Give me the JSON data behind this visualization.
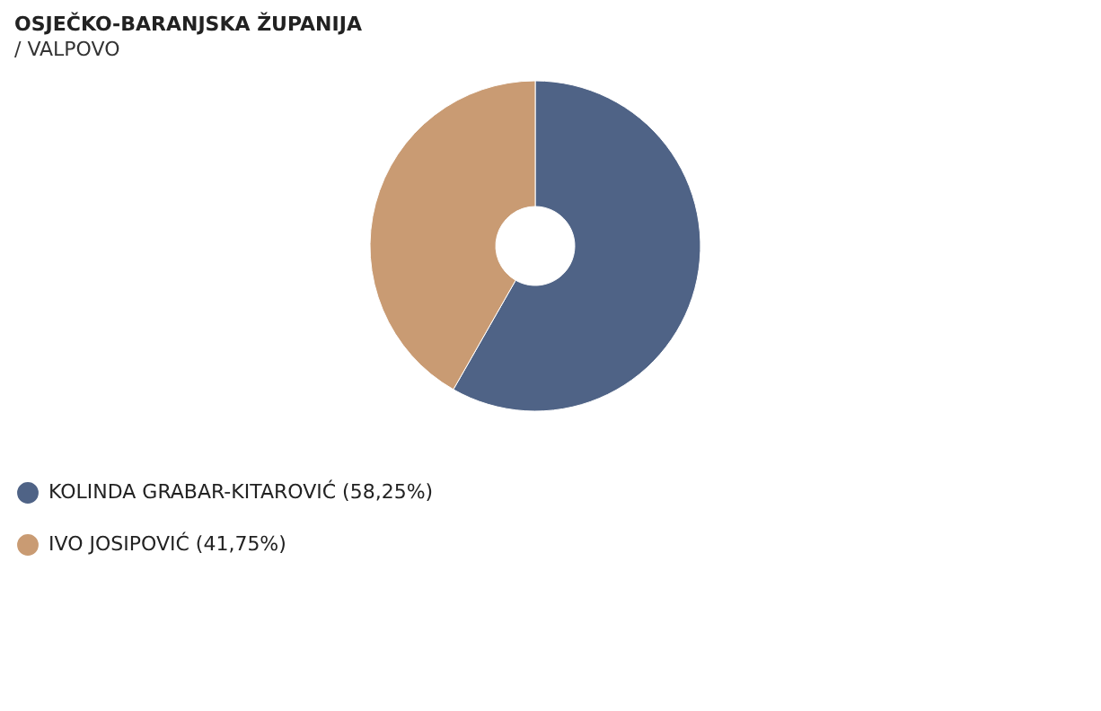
{
  "chart_data": {
    "type": "donut",
    "title": "OSJEČKO-BARANJSKA ŽUPANIJA",
    "subtitle": "/ VALPOVO",
    "categories": [
      "KOLINDA GRABAR-KITAROVIĆ",
      "IVO JOSIPOVIĆ"
    ],
    "values": [
      58.25,
      41.75
    ],
    "colors": [
      "#4f6386",
      "#c99b73"
    ],
    "value_labels": [
      "(58,25%)",
      "(41,75%)"
    ],
    "legend": "bottom"
  }
}
